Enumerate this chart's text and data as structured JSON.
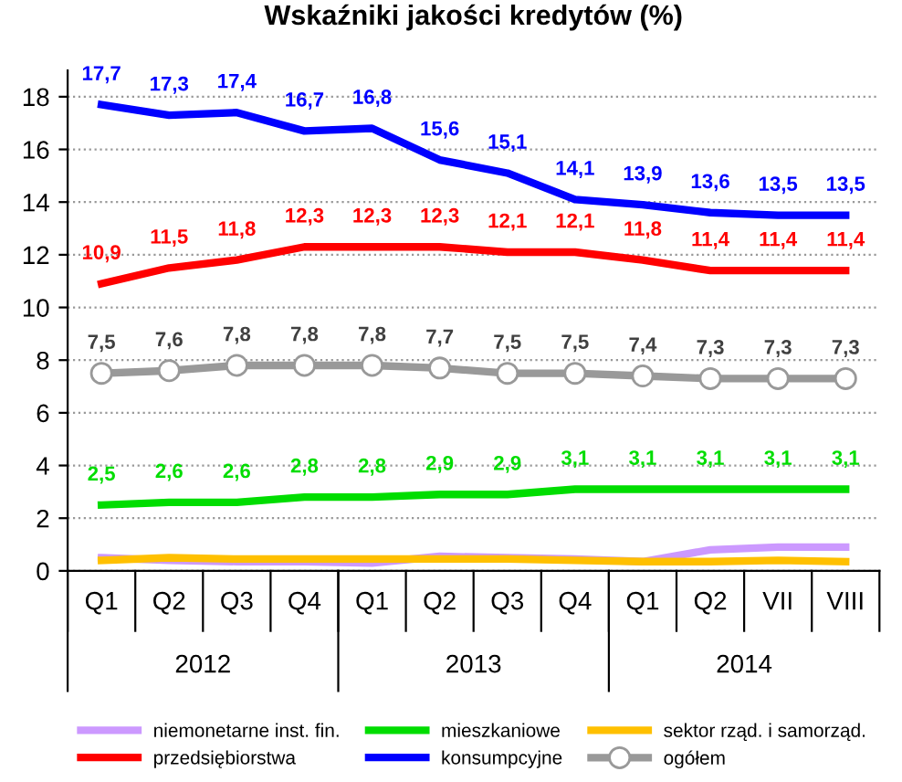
{
  "chart_data": {
    "type": "line",
    "title": "Wskaźniki jakości kredytów (%)",
    "categories": [
      "Q1",
      "Q2",
      "Q3",
      "Q4",
      "Q1",
      "Q2",
      "Q3",
      "Q4",
      "Q1",
      "Q2",
      "VII",
      "VIII"
    ],
    "annotations": [
      "2012",
      "2013",
      "2014"
    ],
    "ylim": [
      0,
      19
    ],
    "yticks": [
      0,
      2,
      4,
      6,
      8,
      10,
      12,
      14,
      16,
      18
    ],
    "grid": "y",
    "legend": "bottom",
    "series": [
      {
        "name": "niemonetarne inst. fin.",
        "color": "#cc99ff",
        "values": [
          0.5,
          0.4,
          0.35,
          0.35,
          0.3,
          0.55,
          0.5,
          0.45,
          0.35,
          0.8,
          0.9,
          0.9
        ]
      },
      {
        "name": "przedsiębiorstwa",
        "color": "#ff0000",
        "values": [
          10.9,
          11.5,
          11.8,
          12.3,
          12.3,
          12.3,
          12.1,
          12.1,
          11.8,
          11.4,
          11.4,
          11.4
        ],
        "value_labels": [
          "10,9",
          "11,5",
          "11,8",
          "12,3",
          "12,3",
          "12,3",
          "12,1",
          "12,1",
          "11,8",
          "11,4",
          "11,4",
          "11,4"
        ]
      },
      {
        "name": "mieszkaniowe",
        "color": "#00dd00",
        "values": [
          2.5,
          2.6,
          2.6,
          2.8,
          2.8,
          2.9,
          2.9,
          3.1,
          3.1,
          3.1,
          3.1,
          3.1
        ],
        "value_labels": [
          "2,5",
          "2,6",
          "2,6",
          "2,8",
          "2,8",
          "2,9",
          "2,9",
          "3,1",
          "3,1",
          "3,1",
          "3,1",
          "3,1"
        ]
      },
      {
        "name": "konsumpcyjne",
        "color": "#0000ff",
        "values": [
          17.7,
          17.3,
          17.4,
          16.7,
          16.8,
          15.6,
          15.1,
          14.1,
          13.9,
          13.6,
          13.5,
          13.5
        ],
        "value_labels": [
          "17,7",
          "17,3",
          "17,4",
          "16,7",
          "16,8",
          "15,6",
          "15,1",
          "14,1",
          "13,9",
          "13,6",
          "13,5",
          "13,5"
        ]
      },
      {
        "name": "sektor rząd. i samorząd.",
        "color": "#ffc000",
        "values": [
          0.4,
          0.5,
          0.45,
          0.45,
          0.45,
          0.45,
          0.45,
          0.4,
          0.35,
          0.35,
          0.4,
          0.35
        ]
      },
      {
        "name": "ogółem",
        "color": "#999999",
        "marker": "circle",
        "values": [
          7.5,
          7.6,
          7.8,
          7.8,
          7.8,
          7.7,
          7.5,
          7.5,
          7.4,
          7.3,
          7.3,
          7.3
        ],
        "value_labels": [
          "7,5",
          "7,6",
          "7,8",
          "7,8",
          "7,8",
          "7,7",
          "7,5",
          "7,5",
          "7,4",
          "7,3",
          "7,3",
          "7,3"
        ]
      }
    ]
  }
}
